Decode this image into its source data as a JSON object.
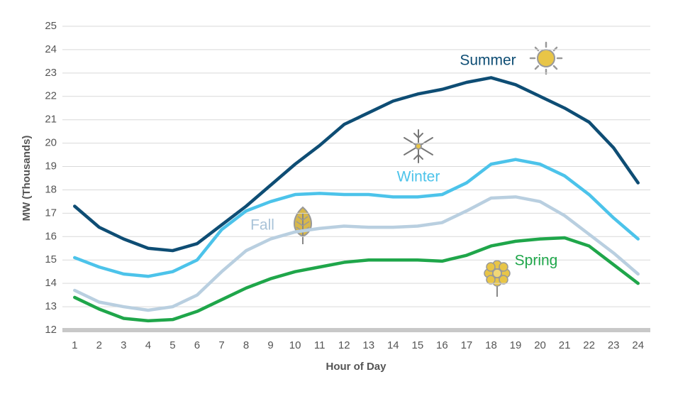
{
  "chart_data": {
    "type": "line",
    "x_label": "Hour of Day",
    "y_label": "MW (Thousands)",
    "categories": [
      "1",
      "2",
      "3",
      "4",
      "5",
      "6",
      "7",
      "8",
      "9",
      "10",
      "11",
      "12",
      "13",
      "14",
      "15",
      "16",
      "17",
      "18",
      "19",
      "20",
      "21",
      "22",
      "23",
      "24"
    ],
    "ylim": [
      12,
      25
    ],
    "yticks": [
      12,
      13,
      14,
      15,
      16,
      17,
      18,
      19,
      20,
      21,
      22,
      23,
      24,
      25
    ],
    "grid": true,
    "series": [
      {
        "name": "Summer",
        "color": "#0e4d74",
        "values": [
          17.3,
          16.4,
          15.9,
          15.5,
          15.4,
          15.7,
          16.5,
          17.3,
          18.2,
          19.1,
          19.9,
          20.8,
          21.3,
          21.8,
          22.1,
          22.3,
          22.6,
          22.8,
          22.5,
          22.0,
          21.5,
          20.9,
          19.8,
          18.3
        ]
      },
      {
        "name": "Winter",
        "color": "#4cc3ea",
        "values": [
          15.1,
          14.7,
          14.4,
          14.3,
          14.5,
          15.0,
          16.3,
          17.1,
          17.5,
          17.8,
          17.85,
          17.8,
          17.8,
          17.7,
          17.7,
          17.8,
          18.3,
          19.1,
          19.3,
          19.1,
          18.6,
          17.8,
          16.8,
          15.9
        ]
      },
      {
        "name": "Fall",
        "color": "#b9cfe0",
        "values": [
          13.7,
          13.2,
          13.0,
          12.85,
          13.0,
          13.5,
          14.5,
          15.4,
          15.9,
          16.2,
          16.35,
          16.45,
          16.4,
          16.4,
          16.45,
          16.6,
          17.1,
          17.65,
          17.7,
          17.5,
          16.9,
          16.1,
          15.3,
          14.4
        ]
      },
      {
        "name": "Spring",
        "color": "#1fa64a",
        "values": [
          13.4,
          12.9,
          12.5,
          12.4,
          12.45,
          12.8,
          13.3,
          13.8,
          14.2,
          14.5,
          14.7,
          14.9,
          15.0,
          15.0,
          15.0,
          14.95,
          15.2,
          15.6,
          15.8,
          15.9,
          15.95,
          15.6,
          14.8,
          14.0
        ]
      }
    ]
  }
}
